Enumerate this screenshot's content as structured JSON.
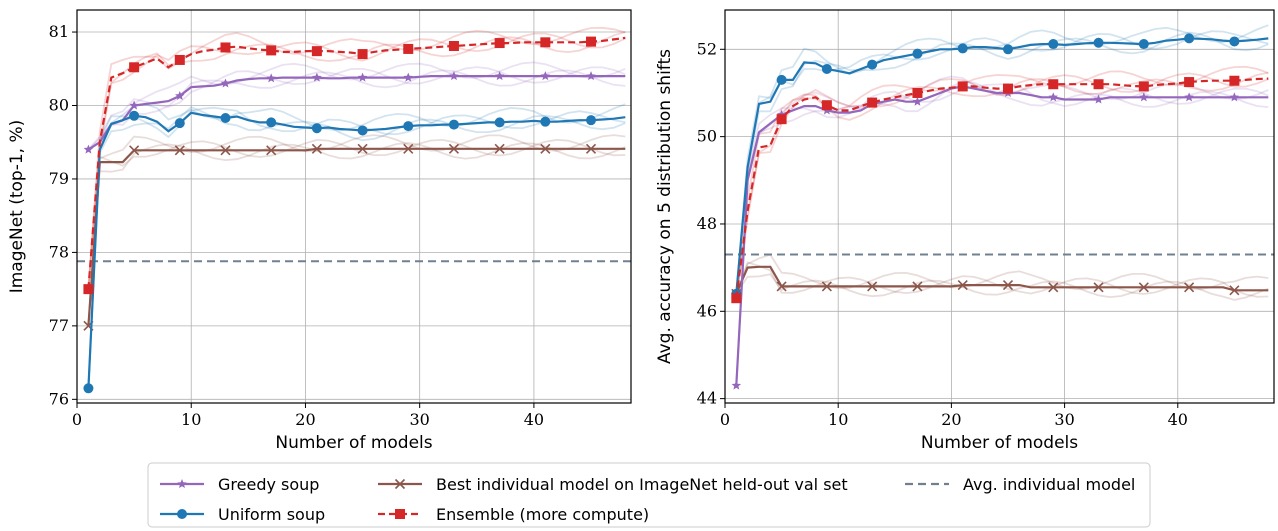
{
  "chart_data": [
    {
      "type": "line",
      "xlabel": "Number of models",
      "ylabel": "ImageNet (top-1, %)",
      "xlim": [
        0,
        48.5
      ],
      "ylim": [
        75.95,
        81.3
      ],
      "xticks": [
        0,
        10,
        20,
        30,
        40
      ],
      "yticks": [
        76,
        77,
        78,
        79,
        80,
        81
      ],
      "grid": true,
      "reference_line": {
        "name": "Avg. individual model",
        "y": 77.88,
        "color": "#708090"
      },
      "series": [
        {
          "name": "Greedy soup",
          "color": "#9467bd",
          "marker": "star",
          "x": [
            1,
            2,
            3,
            4,
            5,
            6,
            7,
            8,
            9,
            10,
            11,
            12,
            13,
            14,
            15,
            16,
            17,
            18,
            19,
            20,
            21,
            22,
            23,
            24,
            25,
            26,
            27,
            28,
            29,
            30,
            31,
            32,
            33,
            34,
            35,
            36,
            37,
            38,
            39,
            40,
            41,
            42,
            43,
            44,
            45,
            46,
            47,
            48
          ],
          "y": [
            79.4,
            79.5,
            79.75,
            79.8,
            80.0,
            80.02,
            80.04,
            80.06,
            80.13,
            80.25,
            80.26,
            80.27,
            80.3,
            80.34,
            80.36,
            80.37,
            80.37,
            80.38,
            80.38,
            80.38,
            80.38,
            80.37,
            80.37,
            80.38,
            80.38,
            80.38,
            80.38,
            80.38,
            80.38,
            80.39,
            80.4,
            80.4,
            80.4,
            80.4,
            80.4,
            80.4,
            80.4,
            80.4,
            80.4,
            80.4,
            80.4,
            80.4,
            80.4,
            80.4,
            80.4,
            80.4,
            80.4,
            80.4
          ]
        },
        {
          "name": "Uniform soup",
          "color": "#1f77b4",
          "marker": "circle",
          "x": [
            1,
            2,
            3,
            4,
            5,
            6,
            7,
            8,
            9,
            10,
            11,
            12,
            13,
            14,
            15,
            16,
            17,
            18,
            19,
            20,
            21,
            22,
            23,
            24,
            25,
            26,
            27,
            28,
            29,
            30,
            31,
            32,
            33,
            34,
            35,
            36,
            37,
            38,
            39,
            40,
            41,
            42,
            43,
            44,
            45,
            46,
            47,
            48
          ],
          "y": [
            76.15,
            79.4,
            79.75,
            79.8,
            79.86,
            79.84,
            79.78,
            79.65,
            79.76,
            79.9,
            79.87,
            79.85,
            79.83,
            79.85,
            79.8,
            79.77,
            79.77,
            79.74,
            79.71,
            79.7,
            79.69,
            79.7,
            79.68,
            79.67,
            79.66,
            79.67,
            79.68,
            79.7,
            79.72,
            79.73,
            79.73,
            79.74,
            79.74,
            79.75,
            79.76,
            79.77,
            79.77,
            79.78,
            79.78,
            79.79,
            79.78,
            79.78,
            79.79,
            79.8,
            79.8,
            79.81,
            79.82,
            79.84
          ]
        },
        {
          "name": "Best individual model on ImageNet held-out val set",
          "color": "#8c564b",
          "marker": "x",
          "x": [
            1,
            2,
            3,
            4,
            5,
            6,
            7,
            8,
            9,
            10,
            11,
            12,
            13,
            14,
            15,
            16,
            17,
            18,
            19,
            20,
            21,
            22,
            23,
            24,
            25,
            26,
            27,
            28,
            29,
            30,
            31,
            32,
            33,
            34,
            35,
            36,
            37,
            38,
            39,
            40,
            41,
            42,
            43,
            44,
            45,
            46,
            47,
            48
          ],
          "y": [
            77.0,
            79.23,
            79.23,
            79.23,
            79.39,
            79.39,
            79.39,
            79.39,
            79.39,
            79.39,
            79.39,
            79.39,
            79.39,
            79.39,
            79.39,
            79.39,
            79.39,
            79.39,
            79.39,
            79.39,
            79.41,
            79.41,
            79.41,
            79.41,
            79.41,
            79.41,
            79.41,
            79.41,
            79.41,
            79.41,
            79.41,
            79.41,
            79.41,
            79.41,
            79.41,
            79.41,
            79.41,
            79.41,
            79.41,
            79.41,
            79.41,
            79.41,
            79.41,
            79.41,
            79.41,
            79.41,
            79.41,
            79.41
          ]
        },
        {
          "name": "Ensemble (more compute)",
          "color": "#d62728",
          "marker": "square",
          "x": [
            1,
            2,
            3,
            4,
            5,
            6,
            7,
            8,
            9,
            10,
            11,
            12,
            13,
            14,
            15,
            16,
            17,
            18,
            19,
            20,
            21,
            22,
            23,
            24,
            25,
            26,
            27,
            28,
            29,
            30,
            31,
            32,
            33,
            34,
            35,
            36,
            37,
            38,
            39,
            40,
            41,
            42,
            43,
            44,
            45,
            46,
            47,
            48
          ],
          "y": [
            77.5,
            79.5,
            80.38,
            80.44,
            80.52,
            80.58,
            80.64,
            80.52,
            80.62,
            80.7,
            80.74,
            80.76,
            80.79,
            80.8,
            80.78,
            80.76,
            80.75,
            80.73,
            80.73,
            80.74,
            80.74,
            80.74,
            80.73,
            80.72,
            80.7,
            80.73,
            80.75,
            80.76,
            80.77,
            80.78,
            80.79,
            80.8,
            80.81,
            80.82,
            80.83,
            80.84,
            80.85,
            80.85,
            80.86,
            80.86,
            80.86,
            80.86,
            80.86,
            80.86,
            80.87,
            80.88,
            80.9,
            80.92
          ]
        }
      ]
    },
    {
      "type": "line",
      "xlabel": "Number of models",
      "ylabel": "Avg. accuracy on 5 distribution shifts",
      "xlim": [
        0,
        48.5
      ],
      "ylim": [
        43.9,
        52.9
      ],
      "xticks": [
        0,
        10,
        20,
        30,
        40
      ],
      "yticks": [
        44,
        46,
        48,
        50,
        52
      ],
      "grid": true,
      "reference_line": {
        "name": "Avg. individual model",
        "y": 47.3,
        "color": "#708090"
      },
      "series": [
        {
          "name": "Greedy soup",
          "color": "#9467bd",
          "marker": "star",
          "x": [
            1,
            2,
            3,
            4,
            5,
            6,
            7,
            8,
            9,
            10,
            11,
            12,
            13,
            14,
            15,
            16,
            17,
            18,
            19,
            20,
            21,
            22,
            23,
            24,
            25,
            26,
            27,
            28,
            29,
            30,
            31,
            32,
            33,
            34,
            35,
            36,
            37,
            38,
            39,
            40,
            41,
            42,
            43,
            44,
            45,
            46,
            47,
            48
          ],
          "y": [
            44.3,
            49.0,
            50.1,
            50.3,
            50.5,
            50.6,
            50.7,
            50.7,
            50.6,
            50.55,
            50.55,
            50.6,
            50.75,
            50.8,
            50.85,
            50.8,
            50.8,
            50.9,
            51.0,
            51.1,
            51.15,
            51.1,
            51.05,
            51.0,
            51.0,
            51.0,
            50.95,
            50.9,
            50.9,
            50.85,
            50.85,
            50.85,
            50.85,
            50.9,
            50.9,
            50.9,
            50.9,
            50.9,
            50.9,
            50.9,
            50.9,
            50.9,
            50.9,
            50.9,
            50.9,
            50.9,
            50.9,
            50.9
          ]
        },
        {
          "name": "Uniform soup",
          "color": "#1f77b4",
          "marker": "circle",
          "x": [
            1,
            2,
            3,
            4,
            5,
            6,
            7,
            8,
            9,
            10,
            11,
            12,
            13,
            14,
            15,
            16,
            17,
            18,
            19,
            20,
            21,
            22,
            23,
            24,
            25,
            26,
            27,
            28,
            29,
            30,
            31,
            32,
            33,
            34,
            35,
            36,
            37,
            38,
            39,
            40,
            41,
            42,
            43,
            44,
            45,
            46,
            47,
            48
          ],
          "y": [
            46.4,
            49.3,
            50.75,
            50.8,
            51.3,
            51.3,
            51.7,
            51.68,
            51.55,
            51.5,
            51.45,
            51.55,
            51.65,
            51.75,
            51.8,
            51.85,
            51.9,
            51.95,
            52.0,
            52.0,
            52.02,
            52.05,
            52.05,
            52.03,
            52.0,
            52.05,
            52.1,
            52.12,
            52.12,
            52.1,
            52.12,
            52.14,
            52.15,
            52.15,
            52.14,
            52.13,
            52.12,
            52.15,
            52.2,
            52.22,
            52.25,
            52.24,
            52.23,
            52.2,
            52.18,
            52.2,
            52.22,
            52.25
          ]
        },
        {
          "name": "Best individual model on ImageNet held-out val set",
          "color": "#8c564b",
          "marker": "x",
          "x": [
            1,
            2,
            3,
            4,
            5,
            6,
            7,
            8,
            9,
            10,
            11,
            12,
            13,
            14,
            15,
            16,
            17,
            18,
            19,
            20,
            21,
            22,
            23,
            24,
            25,
            26,
            27,
            28,
            29,
            30,
            31,
            32,
            33,
            34,
            35,
            36,
            37,
            38,
            39,
            40,
            41,
            42,
            43,
            44,
            45,
            46,
            47,
            48
          ],
          "y": [
            46.4,
            47.0,
            47.02,
            47.02,
            46.57,
            46.57,
            46.57,
            46.57,
            46.57,
            46.57,
            46.57,
            46.57,
            46.57,
            46.57,
            46.57,
            46.57,
            46.57,
            46.57,
            46.57,
            46.57,
            46.6,
            46.6,
            46.6,
            46.6,
            46.6,
            46.6,
            46.55,
            46.55,
            46.55,
            46.55,
            46.55,
            46.55,
            46.55,
            46.55,
            46.55,
            46.55,
            46.55,
            46.55,
            46.55,
            46.55,
            46.55,
            46.55,
            46.55,
            46.55,
            46.48,
            46.48,
            46.48,
            46.48
          ]
        },
        {
          "name": "Ensemble (more compute)",
          "color": "#d62728",
          "marker": "square",
          "x": [
            1,
            2,
            3,
            4,
            5,
            6,
            7,
            8,
            9,
            10,
            11,
            12,
            13,
            14,
            15,
            16,
            17,
            18,
            19,
            20,
            21,
            22,
            23,
            24,
            25,
            26,
            27,
            28,
            29,
            30,
            31,
            32,
            33,
            34,
            35,
            36,
            37,
            38,
            39,
            40,
            41,
            42,
            43,
            44,
            45,
            46,
            47,
            48
          ],
          "y": [
            46.3,
            48.3,
            49.75,
            49.8,
            50.4,
            50.7,
            50.85,
            50.9,
            50.72,
            50.6,
            50.6,
            50.7,
            50.78,
            50.85,
            50.9,
            50.95,
            51.0,
            51.05,
            51.1,
            51.12,
            51.15,
            51.15,
            51.12,
            51.1,
            51.1,
            51.15,
            51.18,
            51.2,
            51.2,
            51.2,
            51.2,
            51.2,
            51.2,
            51.2,
            51.18,
            51.16,
            51.15,
            51.18,
            51.2,
            51.22,
            51.25,
            51.27,
            51.28,
            51.28,
            51.28,
            51.3,
            51.32,
            51.33
          ]
        }
      ]
    }
  ],
  "legend": {
    "placement": "bottom-center",
    "entries": [
      "Greedy soup",
      "Uniform soup",
      "Best individual model on ImageNet held-out val set",
      "Ensemble (more compute)",
      "Avg. individual model"
    ]
  }
}
